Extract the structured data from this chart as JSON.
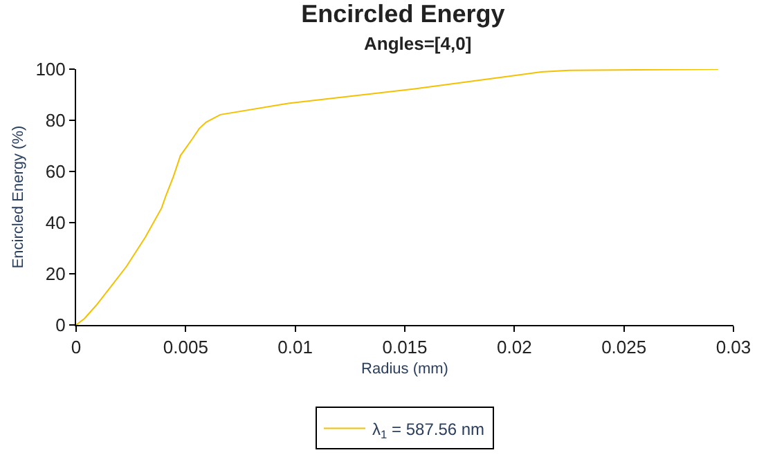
{
  "chart_data": {
    "type": "line",
    "title": "Encircled Energy",
    "subtitle": "Angles=[4,0]",
    "xlabel": "Radius (mm)",
    "ylabel": "Encircled Energy (%)",
    "series": [
      {
        "name": "λ$_{1}$ = 587.56 nm",
        "color": "#f5c000",
        "x": [
          0,
          0.00038,
          0.00092,
          0.00156,
          0.0023,
          0.00316,
          0.0039,
          0.0041,
          0.00444,
          0.00476,
          0.0053,
          0.00562,
          0.00594,
          0.00658,
          0.00968,
          0.01545,
          0.02122,
          0.0225,
          0.0293
        ],
        "values": [
          0,
          2.5,
          7.7,
          14.7,
          22.9,
          34.3,
          45.7,
          50.6,
          58,
          66.2,
          72.7,
          76.8,
          79.3,
          82.2,
          86.6,
          92.3,
          98.9,
          99.5,
          100
        ]
      }
    ],
    "xlim": [
      0,
      0.03
    ],
    "xticks": [
      0,
      0.005,
      0.01,
      0.015,
      0.02,
      0.025,
      0.03
    ],
    "ylim": [
      0,
      100
    ],
    "yticks": [
      0,
      20,
      40,
      60,
      80,
      100
    ],
    "legend": "bottom",
    "marker": "none",
    "line_style": "solid"
  }
}
